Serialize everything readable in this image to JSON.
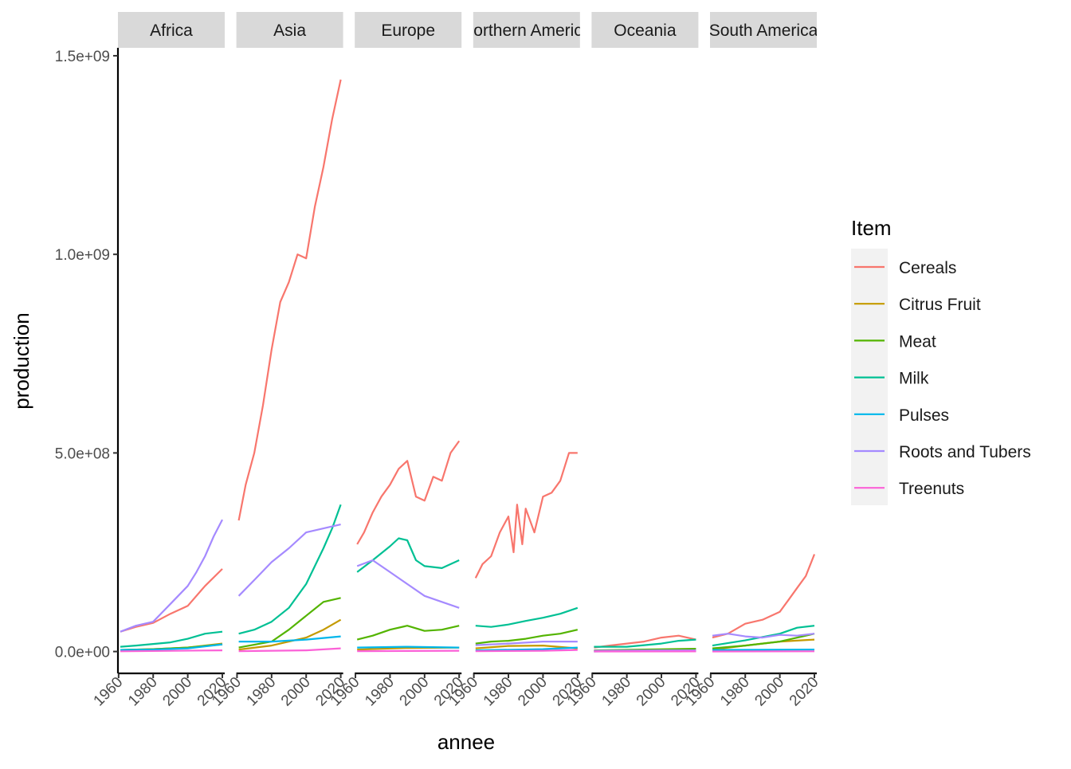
{
  "chart_data": {
    "type": "line",
    "facet_by": "region",
    "xlabel": "annee",
    "ylabel": "production",
    "xlim": [
      1961,
      2020
    ],
    "ylim": [
      -55000000,
      1520000000
    ],
    "x_ticks": [
      1960,
      1980,
      2000,
      2020
    ],
    "x_tick_labels": [
      "1960",
      "1980",
      "2000",
      "2020"
    ],
    "y_ticks": [
      0,
      500000000,
      1000000000,
      1500000000
    ],
    "y_tick_labels": [
      "0.0e+00",
      "5.0e+08",
      "1.0e+09",
      "1.5e+09"
    ],
    "grid": false,
    "legend": {
      "title": "Item",
      "placement": "right",
      "items": [
        "Cereals",
        "Citrus Fruit",
        "Meat",
        "Milk",
        "Pulses",
        "Roots and Tubers",
        "Treenuts"
      ]
    },
    "colors": {
      "Cereals": "#F8766D",
      "Citrus Fruit": "#C49A00",
      "Meat": "#53B400",
      "Milk": "#00C094",
      "Pulses": "#00B6EB",
      "Roots and Tubers": "#A58AFF",
      "Treenuts": "#FB61D7"
    },
    "facets": [
      {
        "name": "Africa",
        "series": [
          {
            "name": "Cereals",
            "x": [
              1961,
              1970,
              1980,
              1990,
              2000,
              2010,
              2020
            ],
            "values": [
              50000000,
              62000000,
              72000000,
              95000000,
              115000000,
              165000000,
              208000000
            ]
          },
          {
            "name": "Citrus Fruit",
            "x": [
              1961,
              1980,
              2000,
              2020
            ],
            "values": [
              4000000,
              6000000,
              10000000,
              20000000
            ]
          },
          {
            "name": "Meat",
            "x": [
              1961,
              1980,
              2000,
              2020
            ],
            "values": [
              4000000,
              6000000,
              10000000,
              18000000
            ]
          },
          {
            "name": "Milk",
            "x": [
              1961,
              1970,
              1980,
              1990,
              2000,
              2010,
              2020
            ],
            "values": [
              12000000,
              15000000,
              19000000,
              23000000,
              32000000,
              45000000,
              50000000
            ]
          },
          {
            "name": "Pulses",
            "x": [
              1961,
              1980,
              2000,
              2020
            ],
            "values": [
              4000000,
              5000000,
              8000000,
              18000000
            ]
          },
          {
            "name": "Roots and Tubers",
            "x": [
              1961,
              1970,
              1980,
              1990,
              2000,
              2005,
              2010,
              2015,
              2020
            ],
            "values": [
              50000000,
              65000000,
              75000000,
              120000000,
              165000000,
              200000000,
              240000000,
              290000000,
              332000000
            ]
          },
          {
            "name": "Treenuts",
            "x": [
              1961,
              2020
            ],
            "values": [
              500000,
              3000000
            ]
          }
        ]
      },
      {
        "name": "Asia",
        "series": [
          {
            "name": "Cereals",
            "x": [
              1961,
              1965,
              1970,
              1975,
              1980,
              1985,
              1990,
              1995,
              2000,
              2005,
              2010,
              2015,
              2020
            ],
            "values": [
              330000000,
              420000000,
              500000000,
              620000000,
              760000000,
              880000000,
              930000000,
              1000000000,
              990000000,
              1120000000,
              1220000000,
              1340000000,
              1440000000
            ]
          },
          {
            "name": "Citrus Fruit",
            "x": [
              1961,
              1980,
              2000,
              2010,
              2020
            ],
            "values": [
              5000000,
              15000000,
              35000000,
              55000000,
              80000000
            ]
          },
          {
            "name": "Meat",
            "x": [
              1961,
              1980,
              1990,
              2000,
              2010,
              2020
            ],
            "values": [
              10000000,
              25000000,
              55000000,
              90000000,
              125000000,
              135000000
            ]
          },
          {
            "name": "Milk",
            "x": [
              1961,
              1970,
              1980,
              1990,
              2000,
              2010,
              2015,
              2020
            ],
            "values": [
              45000000,
              55000000,
              75000000,
              110000000,
              170000000,
              260000000,
              310000000,
              370000000
            ]
          },
          {
            "name": "Pulses",
            "x": [
              1961,
              1980,
              2000,
              2020
            ],
            "values": [
              25000000,
              25000000,
              30000000,
              38000000
            ]
          },
          {
            "name": "Roots and Tubers",
            "x": [
              1961,
              1970,
              1980,
              1990,
              2000,
              2010,
              2020
            ],
            "values": [
              140000000,
              180000000,
              225000000,
              260000000,
              300000000,
              310000000,
              320000000
            ]
          },
          {
            "name": "Treenuts",
            "x": [
              1961,
              2000,
              2020
            ],
            "values": [
              1000000,
              3000000,
              8000000
            ]
          }
        ]
      },
      {
        "name": "Europe",
        "series": [
          {
            "name": "Cereals",
            "x": [
              1961,
              1965,
              1970,
              1975,
              1980,
              1985,
              1990,
              1995,
              2000,
              2005,
              2010,
              2015,
              2020
            ],
            "values": [
              270000000,
              300000000,
              350000000,
              390000000,
              420000000,
              460000000,
              480000000,
              390000000,
              380000000,
              440000000,
              430000000,
              500000000,
              530000000
            ]
          },
          {
            "name": "Citrus Fruit",
            "x": [
              1961,
              1990,
              2020
            ],
            "values": [
              5000000,
              9000000,
              10000000
            ]
          },
          {
            "name": "Meat",
            "x": [
              1961,
              1970,
              1980,
              1990,
              2000,
              2010,
              2020
            ],
            "values": [
              30000000,
              40000000,
              55000000,
              65000000,
              52000000,
              55000000,
              65000000
            ]
          },
          {
            "name": "Milk",
            "x": [
              1961,
              1970,
              1980,
              1985,
              1990,
              1995,
              2000,
              2010,
              2020
            ],
            "values": [
              200000000,
              230000000,
              265000000,
              285000000,
              280000000,
              230000000,
              215000000,
              210000000,
              230000000
            ]
          },
          {
            "name": "Pulses",
            "x": [
              1961,
              1990,
              2020
            ],
            "values": [
              10000000,
              12000000,
              10000000
            ]
          },
          {
            "name": "Roots and Tubers",
            "x": [
              1961,
              1970,
              1980,
              1990,
              2000,
              2010,
              2020
            ],
            "values": [
              215000000,
              230000000,
              200000000,
              170000000,
              140000000,
              125000000,
              110000000
            ]
          },
          {
            "name": "Treenuts",
            "x": [
              1961,
              2020
            ],
            "values": [
              1000000,
              2000000
            ]
          }
        ]
      },
      {
        "name": "Northern America",
        "series": [
          {
            "name": "Cereals",
            "x": [
              1961,
              1965,
              1970,
              1975,
              1980,
              1983,
              1985,
              1988,
              1990,
              1995,
              2000,
              2005,
              2010,
              2015,
              2020
            ],
            "values": [
              185000000,
              220000000,
              240000000,
              300000000,
              340000000,
              250000000,
              370000000,
              270000000,
              360000000,
              300000000,
              390000000,
              400000000,
              430000000,
              500000000,
              500000000
            ]
          },
          {
            "name": "Citrus Fruit",
            "x": [
              1961,
              1980,
              2000,
              2020
            ],
            "values": [
              8000000,
              14000000,
              15000000,
              8000000
            ]
          },
          {
            "name": "Meat",
            "x": [
              1961,
              1970,
              1980,
              1990,
              2000,
              2010,
              2020
            ],
            "values": [
              20000000,
              25000000,
              27000000,
              32000000,
              40000000,
              45000000,
              55000000
            ]
          },
          {
            "name": "Milk",
            "x": [
              1961,
              1970,
              1980,
              1990,
              2000,
              2010,
              2020
            ],
            "values": [
              65000000,
              62000000,
              68000000,
              77000000,
              85000000,
              95000000,
              110000000
            ]
          },
          {
            "name": "Pulses",
            "x": [
              1961,
              2000,
              2020
            ],
            "values": [
              3000000,
              6000000,
              10000000
            ]
          },
          {
            "name": "Roots and Tubers",
            "x": [
              1961,
              1980,
              2000,
              2020
            ],
            "values": [
              16000000,
              20000000,
              25000000,
              25000000
            ]
          },
          {
            "name": "Treenuts",
            "x": [
              1961,
              2000,
              2020
            ],
            "values": [
              1000000,
              2000000,
              4000000
            ]
          }
        ]
      },
      {
        "name": "Oceania",
        "series": [
          {
            "name": "Cereals",
            "x": [
              1961,
              1970,
              1980,
              1990,
              2000,
              2010,
              2020
            ],
            "values": [
              10000000,
              15000000,
              20000000,
              25000000,
              35000000,
              40000000,
              30000000
            ]
          },
          {
            "name": "Citrus Fruit",
            "x": [
              1961,
              2020
            ],
            "values": [
              1000000,
              1000000
            ]
          },
          {
            "name": "Meat",
            "x": [
              1961,
              1990,
              2020
            ],
            "values": [
              3000000,
              5000000,
              7000000
            ]
          },
          {
            "name": "Milk",
            "x": [
              1961,
              1980,
              2000,
              2010,
              2020
            ],
            "values": [
              12000000,
              12000000,
              20000000,
              27000000,
              30000000
            ]
          },
          {
            "name": "Pulses",
            "x": [
              1961,
              2000,
              2020
            ],
            "values": [
              100000,
              2000000,
              2000000
            ]
          },
          {
            "name": "Roots and Tubers",
            "x": [
              1961,
              2000,
              2020
            ],
            "values": [
              2000000,
              3000000,
              3000000
            ]
          },
          {
            "name": "Treenuts",
            "x": [
              1961,
              2020
            ],
            "values": [
              100000,
              300000
            ]
          }
        ]
      },
      {
        "name": "South America",
        "series": [
          {
            "name": "Cereals",
            "x": [
              1961,
              1970,
              1980,
              1990,
              2000,
              2005,
              2010,
              2015,
              2020
            ],
            "values": [
              35000000,
              45000000,
              70000000,
              80000000,
              100000000,
              130000000,
              160000000,
              190000000,
              245000000
            ]
          },
          {
            "name": "Citrus Fruit",
            "x": [
              1961,
              1980,
              2000,
              2020
            ],
            "values": [
              5000000,
              15000000,
              25000000,
              30000000
            ]
          },
          {
            "name": "Meat",
            "x": [
              1961,
              1980,
              2000,
              2020
            ],
            "values": [
              8000000,
              15000000,
              25000000,
              45000000
            ]
          },
          {
            "name": "Milk",
            "x": [
              1961,
              1980,
              2000,
              2010,
              2020
            ],
            "values": [
              15000000,
              28000000,
              45000000,
              60000000,
              65000000
            ]
          },
          {
            "name": "Pulses",
            "x": [
              1961,
              2020
            ],
            "values": [
              4000000,
              5000000
            ]
          },
          {
            "name": "Roots and Tubers",
            "x": [
              1961,
              1970,
              1980,
              1990,
              2000,
              2010,
              2020
            ],
            "values": [
              40000000,
              45000000,
              38000000,
              35000000,
              42000000,
              40000000,
              45000000
            ]
          },
          {
            "name": "Treenuts",
            "x": [
              1961,
              2020
            ],
            "values": [
              200000,
              500000
            ]
          }
        ]
      }
    ]
  }
}
